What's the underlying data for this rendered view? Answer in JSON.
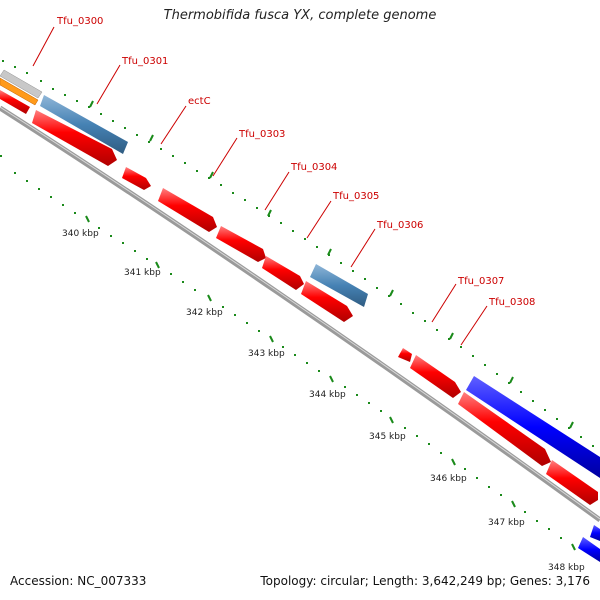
{
  "title": "Thermobifida fusca YX, complete genome",
  "footer": {
    "accession": "Accession: NC_007333",
    "summary": "Topology: circular; Length: 3,642,249 bp; Genes: 3,176"
  },
  "genes": [
    {
      "name": "Tfu_0300",
      "label": "Tfu_0300"
    },
    {
      "name": "Tfu_0301",
      "label": "Tfu_0301"
    },
    {
      "name": "ectC",
      "label": "ectC"
    },
    {
      "name": "Tfu_0303",
      "label": "Tfu_0303"
    },
    {
      "name": "Tfu_0304",
      "label": "Tfu_0304"
    },
    {
      "name": "Tfu_0305",
      "label": "Tfu_0305"
    },
    {
      "name": "Tfu_0306",
      "label": "Tfu_0306"
    },
    {
      "name": "Tfu_0307",
      "label": "Tfu_0307"
    },
    {
      "name": "Tfu_0308",
      "label": "Tfu_0308"
    }
  ],
  "ruler": [
    "340 kbp",
    "341 kbp",
    "342 kbp",
    "343 kbp",
    "344 kbp",
    "345 kbp",
    "346 kbp",
    "347 kbp",
    "348 kbp"
  ],
  "colors": {
    "cds": "#ff0000",
    "gene_blue": "#4682b4",
    "gene_darkblue": "#0000ff",
    "gene_orange": "#ff8c00",
    "gene_gray": "#c0c0c0",
    "backbone": "#808080",
    "tick": "#008000",
    "label": "#cc0000"
  }
}
